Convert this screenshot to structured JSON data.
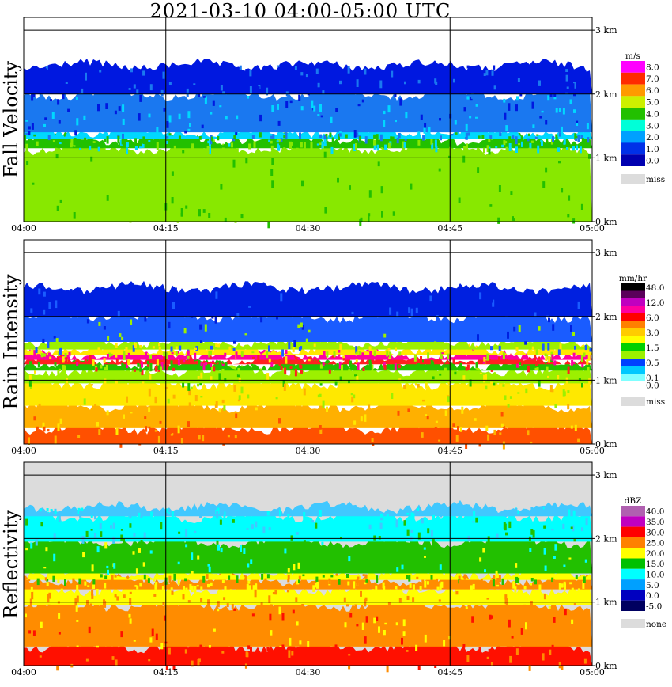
{
  "title": "2021-03-10   04:00-05:00 UTC",
  "x_ticks": [
    "04:00",
    "04:15",
    "04:30",
    "04:45",
    "05:00"
  ],
  "y_ticks": [
    "0 km",
    "1 km",
    "2 km",
    "3 km"
  ],
  "chart_data": [
    {
      "type": "heatmap",
      "panel_label": "Fall Velocity",
      "x_range": [
        "04:00",
        "05:00"
      ],
      "y_range_km": [
        0,
        3.2
      ],
      "colorbar_unit": "m/s",
      "colorbar": [
        {
          "label": "8.0",
          "color": "#ff00ff"
        },
        {
          "label": "7.0",
          "color": "#ff2a00"
        },
        {
          "label": "6.0",
          "color": "#ff9a00"
        },
        {
          "label": "5.0",
          "color": "#ccf000"
        },
        {
          "label": "4.0",
          "color": "#22c000"
        },
        {
          "label": "3.0",
          "color": "#00ffd8"
        },
        {
          "label": "2.0",
          "color": "#00a0ff"
        },
        {
          "label": "1.0",
          "color": "#0030e8"
        },
        {
          "label": "0.0",
          "color": "#0000b0"
        },
        {
          "label": "miss",
          "color": "#dcdcdc"
        }
      ],
      "background": "#ffffff",
      "layers": [
        {
          "bottom_km": 0.0,
          "top_km": 1.15,
          "color": "#88e800"
        },
        {
          "bottom_km": 1.15,
          "top_km": 1.3,
          "color": "#22c000"
        },
        {
          "bottom_km": 1.3,
          "top_km": 1.4,
          "color": "#00d8ff"
        },
        {
          "bottom_km": 1.4,
          "top_km": 2.0,
          "color": "#1a78f0"
        },
        {
          "bottom_km": 2.0,
          "top_km": 2.45,
          "color": "#0018e0"
        }
      ]
    },
    {
      "type": "heatmap",
      "panel_label": "Rain Intensity",
      "x_range": [
        "04:00",
        "05:00"
      ],
      "y_range_km": [
        0,
        3.2
      ],
      "colorbar_unit": "mm/hr",
      "colorbar": [
        {
          "label": "48.0",
          "color": "#000000"
        },
        {
          "label": "",
          "color": "#5a005a"
        },
        {
          "label": "12.0",
          "color": "#c000c0"
        },
        {
          "label": "",
          "color": "#ff00a0"
        },
        {
          "label": "6.0",
          "color": "#ff0000"
        },
        {
          "label": "",
          "color": "#ff8000"
        },
        {
          "label": "3.0",
          "color": "#ffcc00"
        },
        {
          "label": "",
          "color": "#ffff00"
        },
        {
          "label": "1.5",
          "color": "#00d000"
        },
        {
          "label": "",
          "color": "#9cf000"
        },
        {
          "label": "0.5",
          "color": "#0040ff"
        },
        {
          "label": "",
          "color": "#00c8ff"
        },
        {
          "label": "0.1",
          "color": "#80ffff"
        },
        {
          "label": "0.0",
          "color": "#ffffff"
        },
        {
          "label": "miss",
          "color": "#dcdcdc"
        }
      ],
      "background": "#ffffff",
      "layers": [
        {
          "bottom_km": 0.0,
          "top_km": 0.25,
          "color": "#ff5000"
        },
        {
          "bottom_km": 0.25,
          "top_km": 0.6,
          "color": "#ffb000"
        },
        {
          "bottom_km": 0.6,
          "top_km": 0.95,
          "color": "#ffe800"
        },
        {
          "bottom_km": 0.95,
          "top_km": 1.15,
          "color": "#9cf000"
        },
        {
          "bottom_km": 1.15,
          "top_km": 1.25,
          "color": "#22c000"
        },
        {
          "bottom_km": 1.25,
          "top_km": 1.32,
          "color": "#ff2020"
        },
        {
          "bottom_km": 1.32,
          "top_km": 1.4,
          "color": "#ff00a0"
        },
        {
          "bottom_km": 1.4,
          "top_km": 1.48,
          "color": "#ffe800"
        },
        {
          "bottom_km": 1.48,
          "top_km": 1.6,
          "color": "#9cf000"
        },
        {
          "bottom_km": 1.6,
          "top_km": 2.0,
          "color": "#1a5cff"
        },
        {
          "bottom_km": 2.0,
          "top_km": 2.45,
          "color": "#0020e0"
        }
      ]
    },
    {
      "type": "heatmap",
      "panel_label": "Reflectivity",
      "x_range": [
        "04:00",
        "05:00"
      ],
      "y_range_km": [
        0,
        3.2
      ],
      "colorbar_unit": "dBZ",
      "colorbar": [
        {
          "label": "40.0",
          "color": "#b060b0"
        },
        {
          "label": "35.0",
          "color": "#c000c0"
        },
        {
          "label": "30.0",
          "color": "#ff0000"
        },
        {
          "label": "25.0",
          "color": "#ff8000"
        },
        {
          "label": "20.0",
          "color": "#ffff00"
        },
        {
          "label": "15.0",
          "color": "#00c000"
        },
        {
          "label": "10.0",
          "color": "#00ffff"
        },
        {
          "label": "5.0",
          "color": "#00a0ff"
        },
        {
          "label": "0.0",
          "color": "#0000c0"
        },
        {
          "label": "-5.0",
          "color": "#000060"
        },
        {
          "label": "none",
          "color": "#dcdcdc"
        }
      ],
      "background": "#dcdcdc",
      "layers": [
        {
          "bottom_km": 0.0,
          "top_km": 0.3,
          "color": "#ff1000"
        },
        {
          "bottom_km": 0.3,
          "top_km": 0.95,
          "color": "#ff8c00"
        },
        {
          "bottom_km": 0.95,
          "top_km": 1.2,
          "color": "#ffff00"
        },
        {
          "bottom_km": 1.2,
          "top_km": 1.35,
          "color": "#ff8c00"
        },
        {
          "bottom_km": 1.35,
          "top_km": 1.45,
          "color": "#ffff00"
        },
        {
          "bottom_km": 1.45,
          "top_km": 1.95,
          "color": "#22c000"
        },
        {
          "bottom_km": 1.95,
          "top_km": 2.35,
          "color": "#00ffff"
        },
        {
          "bottom_km": 2.35,
          "top_km": 2.5,
          "color": "#40c8ff"
        }
      ]
    }
  ]
}
